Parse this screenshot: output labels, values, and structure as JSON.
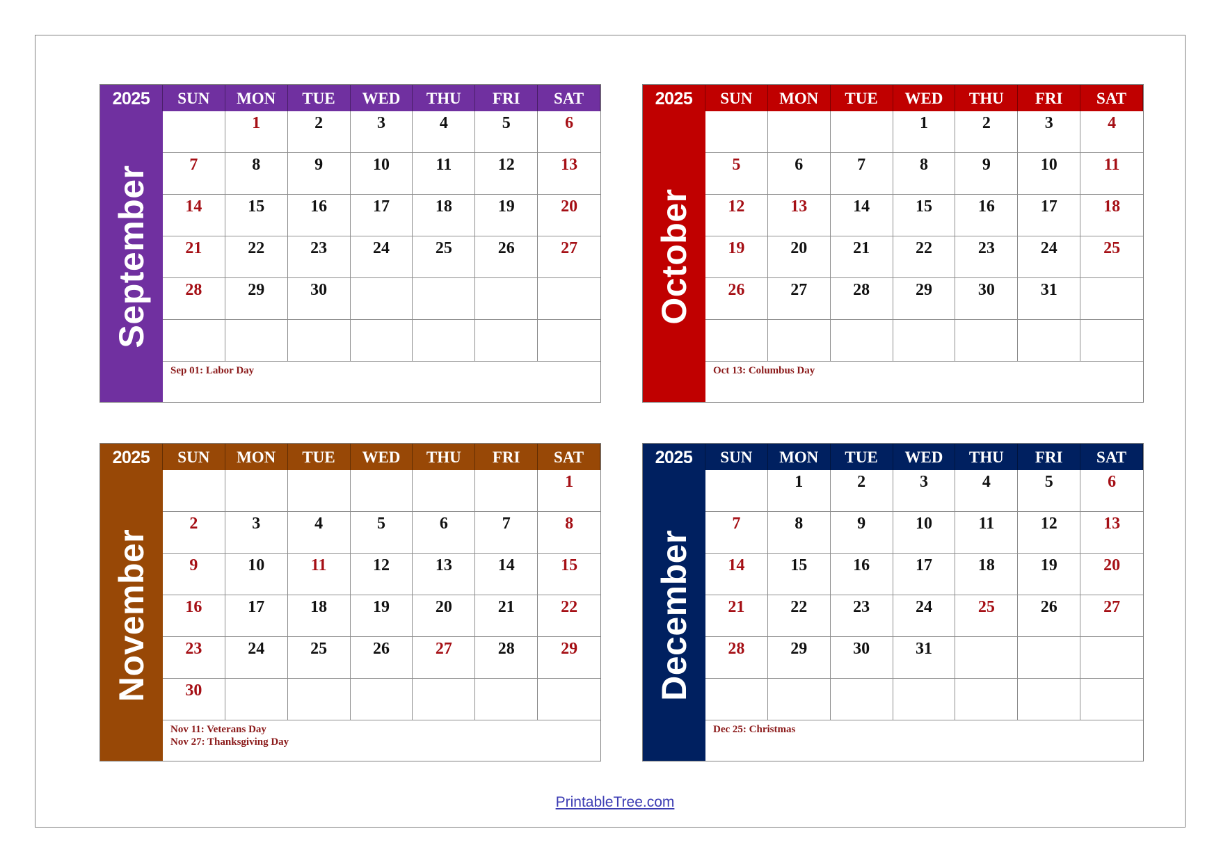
{
  "year": "2025",
  "weekdays": [
    "SUN",
    "MON",
    "TUE",
    "WED",
    "THU",
    "FRI",
    "SAT"
  ],
  "months": [
    {
      "name": "September",
      "color": "#7030a0",
      "start_weekday": 1,
      "days": 30,
      "holiday_days": [
        1
      ],
      "notes": [
        "Sep 01: Labor Day"
      ]
    },
    {
      "name": "October",
      "color": "#c00000",
      "start_weekday": 3,
      "days": 31,
      "holiday_days": [
        13
      ],
      "notes": [
        "Oct 13: Columbus Day"
      ]
    },
    {
      "name": "November",
      "color": "#984806",
      "start_weekday": 6,
      "days": 30,
      "holiday_days": [
        11,
        27
      ],
      "notes": [
        "Nov 11: Veterans Day",
        "Nov 27: Thanksgiving Day"
      ]
    },
    {
      "name": "December",
      "color": "#002060",
      "start_weekday": 1,
      "days": 31,
      "holiday_days": [
        25
      ],
      "notes": [
        "Dec 25: Christmas"
      ]
    }
  ],
  "footer": {
    "link_text": "PrintableTree.com"
  },
  "colors": {
    "weekend_holiday": "#a50f15",
    "notes": "#8b1a1a"
  }
}
